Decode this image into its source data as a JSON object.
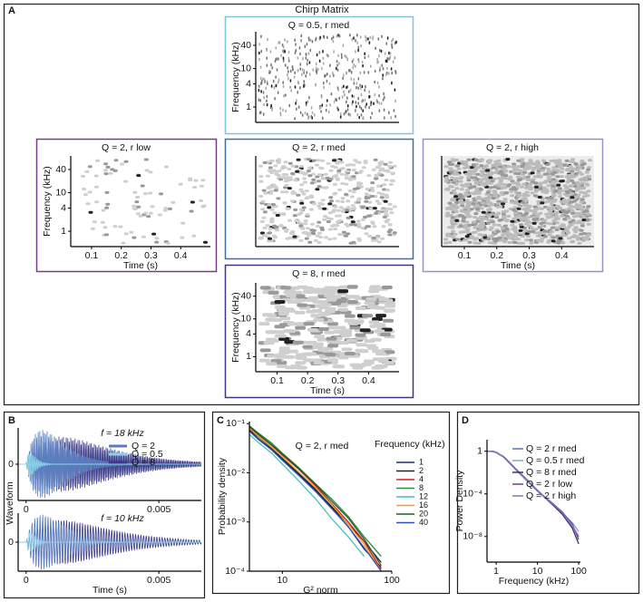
{
  "figure": {
    "labels": [
      "A",
      "B",
      "C",
      "D"
    ],
    "title": "Chirp Matrix"
  },
  "chart_data": [
    {
      "type": "spectrogram",
      "title": "Q = 0.5, r med",
      "ylabel": "Frequency (kHz)",
      "log_y": true,
      "xlim": [
        0.03,
        0.5
      ],
      "ylim": [
        0.4,
        90
      ],
      "yticks": [
        1,
        4,
        10,
        40
      ]
    },
    {
      "type": "spectrogram",
      "title": "Q = 2, r low",
      "ylabel": "Frequency (kHz)",
      "xlabel": "Time (s)",
      "log_y": true,
      "xlim": [
        0.03,
        0.5
      ],
      "ylim": [
        0.4,
        90
      ],
      "yticks": [
        1,
        4,
        10,
        40
      ],
      "xticks": [
        0.1,
        0.2,
        0.3,
        0.4
      ]
    },
    {
      "type": "spectrogram",
      "title": "Q = 2, r med",
      "log_y": true,
      "xlim": [
        0.03,
        0.5
      ],
      "ylim": [
        0.4,
        90
      ]
    },
    {
      "type": "spectrogram",
      "title": "Q = 2, r high",
      "xlabel": "Time (s)",
      "log_y": true,
      "xlim": [
        0.03,
        0.5
      ],
      "ylim": [
        0.4,
        90
      ],
      "xticks": [
        0.1,
        0.2,
        0.3,
        0.4
      ]
    },
    {
      "type": "spectrogram",
      "title": "Q = 8, r med",
      "ylabel": "Frequency (kHz)",
      "xlabel": "Time (s)",
      "log_y": true,
      "xlim": [
        0.03,
        0.5
      ],
      "ylim": [
        0.4,
        90
      ],
      "yticks": [
        1,
        4,
        10,
        40
      ],
      "xticks": [
        0.1,
        0.2,
        0.3,
        0.4
      ]
    },
    {
      "type": "waveform",
      "annotation": "f = 18 kHz",
      "ylabel": "Waveform",
      "xlim": [
        -0.0003,
        0.0066
      ],
      "ylim": [
        -1,
        1
      ],
      "yticks": [
        0
      ],
      "xticks": [
        0,
        0.005
      ],
      "series": [
        {
          "name": "Q = 2",
          "color": "#5a7fc0"
        },
        {
          "name": "Q = 0.5",
          "color": "#8ad0e8"
        },
        {
          "name": "Q = 8",
          "color": "#3a3a8a"
        }
      ]
    },
    {
      "type": "waveform",
      "annotation": "f = 10 kHz",
      "xlabel": "Time (s)",
      "xlim": [
        -0.0003,
        0.0066
      ],
      "ylim": [
        -1,
        1
      ],
      "yticks": [
        0
      ],
      "xticks": [
        0,
        0.005
      ],
      "colors": [
        "#5a7fc0",
        "#8ad0e8",
        "#3a3a8a"
      ]
    },
    {
      "type": "line",
      "title": "Q = 2, r med",
      "ylabel": "Probability density",
      "xlabel": "G² norm",
      "legend_title": "Frequency (kHz)",
      "log_x": true,
      "log_y": true,
      "xlim": [
        5,
        100
      ],
      "ylim": [
        0.0001,
        0.11
      ],
      "xticks": [
        10,
        100
      ],
      "yticks": [
        {
          "value": 0.1,
          "label": "10⁻¹"
        },
        {
          "value": 0.01,
          "label": "10⁻²"
        },
        {
          "value": 0.001,
          "label": "10⁻³"
        },
        {
          "value": 0.0001,
          "label": "10⁻⁴"
        }
      ],
      "x": [
        5,
        6,
        8,
        10,
        14,
        20,
        28,
        40,
        56,
        80
      ],
      "series": [
        {
          "name": "1",
          "color": "#1f2d7a",
          "values": [
            0.08,
            0.055,
            0.032,
            0.02,
            0.01,
            0.0047,
            0.002,
            0.0008,
            0.00028,
            0.00012
          ]
        },
        {
          "name": "2",
          "color": "#222222",
          "values": [
            0.075,
            0.05,
            0.03,
            0.019,
            0.0095,
            0.0045,
            0.0021,
            0.0009,
            0.0004,
            0.00015
          ]
        },
        {
          "name": "4",
          "color": "#d02020",
          "values": [
            0.085,
            0.06,
            0.036,
            0.023,
            0.012,
            0.0055,
            0.0024,
            0.001,
            0.0004,
            0.00011
          ]
        },
        {
          "name": "8",
          "color": "#2e8b3e",
          "values": [
            0.09,
            0.065,
            0.04,
            0.025,
            0.013,
            0.006,
            0.003,
            0.0013,
            0.0005,
            0.0002
          ]
        },
        {
          "name": "12",
          "color": "#40c0c0",
          "values": [
            0.06,
            0.042,
            0.025,
            0.015,
            0.007,
            0.003,
            0.0012,
            0.0005,
            0.0002,
            null
          ]
        },
        {
          "name": "16",
          "color": "#f0a020",
          "values": [
            0.08,
            0.056,
            0.033,
            0.021,
            0.0105,
            0.005,
            0.0023,
            0.0009,
            0.00035,
            0.0001
          ]
        },
        {
          "name": "20",
          "color": "#1a5e2a",
          "values": [
            0.088,
            0.062,
            0.037,
            0.024,
            0.0125,
            0.0058,
            0.0027,
            0.0012,
            0.00045,
            0.00013
          ]
        },
        {
          "name": "40",
          "color": "#3050c0",
          "values": [
            0.07,
            0.048,
            0.029,
            0.018,
            0.009,
            0.0042,
            0.0019,
            0.0008,
            0.0003,
            0.0001
          ]
        }
      ]
    },
    {
      "type": "line",
      "ylabel": "Power Density",
      "xlabel": "Frequency (kHz)",
      "log_x": true,
      "log_y": true,
      "xlim": [
        0.6,
        110
      ],
      "ylim": [
        4e-11,
        12
      ],
      "xticks": [
        1,
        10,
        100
      ],
      "yticks": [
        1,
        {
          "value": 0.0001,
          "label": "10⁻⁴"
        },
        {
          "value": 1e-08,
          "label": "10⁻⁸"
        }
      ],
      "x": [
        0.6,
        0.8,
        1,
        1.5,
        2,
        3,
        5,
        10,
        20,
        40,
        70,
        100
      ],
      "series": [
        {
          "name": "Q = 2 r med",
          "color": "#5b6fb0",
          "values": [
            1,
            1,
            0.8,
            0.3,
            0.1,
            0.02,
            0.003,
            0.0002,
            2e-05,
            2e-06,
            1e-07,
            1e-08
          ]
        },
        {
          "name": "Q = 0.5 r med",
          "color": "#7fa8d8",
          "values": [
            1,
            1,
            0.75,
            0.28,
            0.09,
            0.018,
            0.0025,
            0.00018,
            1.5e-05,
            1.5e-06,
            2e-07,
            3e-08
          ]
        },
        {
          "name": "Q = 8 r med",
          "color": "#3b2f6e",
          "values": [
            1,
            1,
            0.8,
            0.32,
            0.11,
            0.022,
            0.0032,
            0.00022,
            1.8e-05,
            1.2e-06,
            6e-08,
            2e-09
          ]
        },
        {
          "name": "Q = 2 r low",
          "color": "#6b3a8a",
          "values": [
            1,
            0.95,
            0.78,
            0.3,
            0.1,
            0.019,
            0.0028,
            0.00019,
            2.2e-05,
            2e-06,
            1.5e-07,
            5e-09
          ]
        },
        {
          "name": "Q = 2 r high",
          "color": "#8a6fb8",
          "values": [
            1,
            1,
            0.82,
            0.31,
            0.1,
            0.021,
            0.003,
            0.00021,
            2e-05,
            1.8e-06,
            1.2e-07,
            1e-08
          ]
        }
      ]
    }
  ]
}
